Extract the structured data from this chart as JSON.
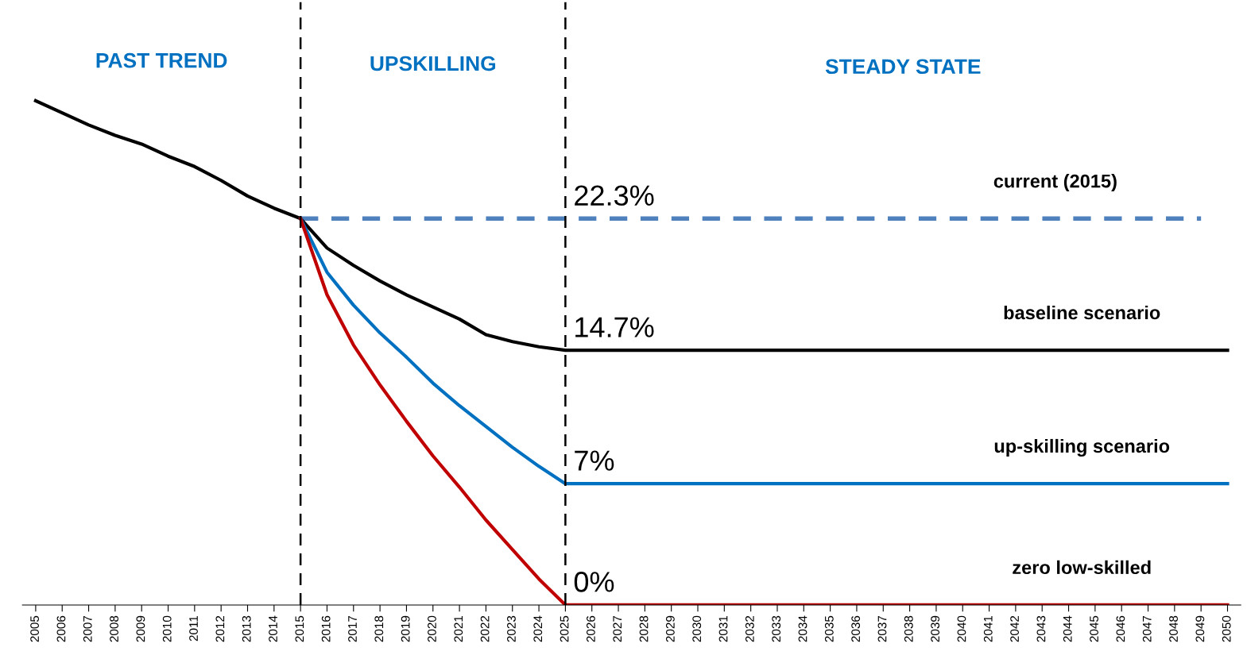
{
  "chart_data": {
    "type": "line",
    "categories": [
      "2005",
      "2006",
      "2007",
      "2008",
      "2009",
      "2010",
      "2011",
      "2012",
      "2013",
      "2014",
      "2015",
      "2016",
      "2017",
      "2018",
      "2019",
      "2020",
      "2021",
      "2022",
      "2023",
      "2024",
      "2025",
      "2026",
      "2027",
      "2028",
      "2029",
      "2030",
      "2031",
      "2032",
      "2033",
      "2034",
      "2035",
      "2036",
      "2037",
      "2038",
      "2039",
      "2040",
      "2041",
      "2042",
      "2043",
      "2044",
      "2045",
      "2046",
      "2047",
      "2048",
      "2049",
      "2050"
    ],
    "ylim": [
      0,
      34.8
    ],
    "tick_labels": "x",
    "annotations": [
      "PAST TREND",
      "UPSKILLING",
      "STEADY STATE"
    ],
    "ref_lines": [
      {
        "axis": "x",
        "value": "2015",
        "color": "#000000",
        "line_style": "dashed"
      },
      {
        "axis": "x",
        "value": "2025",
        "color": "#000000",
        "line_style": "dashed"
      }
    ],
    "series": [
      {
        "name": "current (2015)",
        "color": "#4f81bd",
        "line_style": "dashed",
        "values": [
          null,
          null,
          null,
          null,
          null,
          null,
          null,
          null,
          null,
          null,
          22.3,
          22.3,
          22.3,
          22.3,
          22.3,
          22.3,
          22.3,
          22.3,
          22.3,
          22.3,
          22.3,
          22.3,
          22.3,
          22.3,
          22.3,
          22.3,
          22.3,
          22.3,
          22.3,
          22.3,
          22.3,
          22.3,
          22.3,
          22.3,
          22.3,
          22.3,
          22.3,
          22.3,
          22.3,
          22.3,
          22.3,
          22.3,
          22.3,
          22.3,
          22.3,
          null
        ],
        "value_labels": [
          null,
          null,
          null,
          null,
          null,
          null,
          null,
          null,
          null,
          null,
          null,
          null,
          null,
          null,
          null,
          null,
          null,
          null,
          null,
          null,
          "22.3%",
          null,
          null,
          null,
          null,
          null,
          null,
          null,
          null,
          null,
          null,
          null,
          null,
          null,
          null,
          null,
          null,
          null,
          null,
          null,
          null,
          null,
          null,
          null,
          null,
          null
        ]
      },
      {
        "name": "baseline scenario",
        "color": "#000000",
        "line_style": "solid",
        "values": [
          29.1,
          28.4,
          27.7,
          27.1,
          26.6,
          25.9,
          25.3,
          24.5,
          23.6,
          22.9,
          22.3,
          20.6,
          19.6,
          18.7,
          17.9,
          17.2,
          16.5,
          15.6,
          15.2,
          14.9,
          14.7,
          14.7,
          14.7,
          14.7,
          14.7,
          14.7,
          14.7,
          14.7,
          14.7,
          14.7,
          14.7,
          14.7,
          14.7,
          14.7,
          14.7,
          14.7,
          14.7,
          14.7,
          14.7,
          14.7,
          14.7,
          14.7,
          14.7,
          14.7,
          14.7,
          14.7
        ],
        "value_labels": [
          null,
          null,
          null,
          null,
          null,
          null,
          null,
          null,
          null,
          null,
          null,
          null,
          null,
          null,
          null,
          null,
          null,
          null,
          null,
          null,
          "14.7%",
          null,
          null,
          null,
          null,
          null,
          null,
          null,
          null,
          null,
          null,
          null,
          null,
          null,
          null,
          null,
          null,
          null,
          null,
          null,
          null,
          null,
          null,
          null,
          null,
          null
        ]
      },
      {
        "name": "up-skilling scenario",
        "color": "#0070c0",
        "line_style": "solid",
        "values": [
          null,
          null,
          null,
          null,
          null,
          null,
          null,
          null,
          null,
          null,
          22.3,
          19.2,
          17.3,
          15.7,
          14.3,
          12.8,
          11.5,
          10.3,
          9.1,
          8.0,
          7.0,
          7.0,
          7.0,
          7.0,
          7.0,
          7.0,
          7.0,
          7.0,
          7.0,
          7.0,
          7.0,
          7.0,
          7.0,
          7.0,
          7.0,
          7.0,
          7.0,
          7.0,
          7.0,
          7.0,
          7.0,
          7.0,
          7.0,
          7.0,
          7.0,
          7.0
        ],
        "value_labels": [
          null,
          null,
          null,
          null,
          null,
          null,
          null,
          null,
          null,
          null,
          null,
          null,
          null,
          null,
          null,
          null,
          null,
          null,
          null,
          null,
          "7%",
          null,
          null,
          null,
          null,
          null,
          null,
          null,
          null,
          null,
          null,
          null,
          null,
          null,
          null,
          null,
          null,
          null,
          null,
          null,
          null,
          null,
          null,
          null,
          null,
          null
        ]
      },
      {
        "name": "zero low-skilled",
        "color": "#c00000",
        "line_style": "solid",
        "values": [
          null,
          null,
          null,
          null,
          null,
          null,
          null,
          null,
          null,
          null,
          22.3,
          17.9,
          15.0,
          12.7,
          10.6,
          8.6,
          6.8,
          4.9,
          3.2,
          1.5,
          0,
          0,
          0,
          0,
          0,
          0,
          0,
          0,
          0,
          0,
          0,
          0,
          0,
          0,
          0,
          0,
          0,
          0,
          0,
          0,
          0,
          0,
          0,
          0,
          0,
          0
        ],
        "value_labels": [
          null,
          null,
          null,
          null,
          null,
          null,
          null,
          null,
          null,
          null,
          null,
          null,
          null,
          null,
          null,
          null,
          null,
          null,
          null,
          null,
          "0%",
          null,
          null,
          null,
          null,
          null,
          null,
          null,
          null,
          null,
          null,
          null,
          null,
          null,
          null,
          null,
          null,
          null,
          null,
          null,
          null,
          null,
          null,
          null,
          null,
          null
        ]
      }
    ]
  }
}
